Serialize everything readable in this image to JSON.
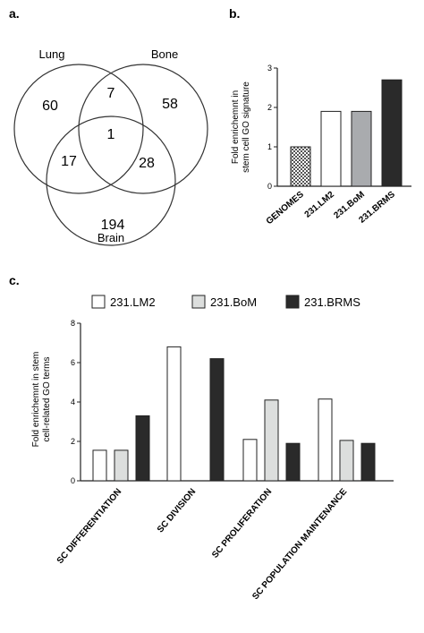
{
  "panels": {
    "a": "a.",
    "b": "b.",
    "c": "c."
  },
  "venn": {
    "sets": [
      {
        "label": "Lung",
        "only": "60"
      },
      {
        "label": "Bone",
        "only": "58"
      },
      {
        "label": "Brain",
        "only": "194"
      }
    ],
    "overlaps": {
      "lung_bone": "7",
      "lung_brain": "17",
      "bone_brain": "28",
      "all": "1"
    }
  },
  "chart_data": [
    {
      "type": "bar",
      "categories": [
        "GENOMES",
        "231.LM2",
        "231.BoM",
        "231.BRMS"
      ],
      "values": [
        1.0,
        1.9,
        1.9,
        2.7
      ],
      "ylabel": "Fold enrichemnt in stem cell GO signature",
      "ylim": [
        0,
        3
      ],
      "yticks": [
        "0",
        "1",
        "2",
        "3"
      ],
      "colors": [
        "#cccccc",
        "#ffffff",
        "#a9abae",
        "#2a2a2a"
      ]
    },
    {
      "type": "bar",
      "categories": [
        "SC DIFFERENTIATION",
        "SC DIVISION",
        "SC PROLIFERATION",
        "SC POPULATION MAINTENANCE"
      ],
      "series": [
        {
          "name": "231.LM2",
          "values": [
            1.55,
            6.8,
            2.1,
            4.15
          ],
          "color": "#ffffff"
        },
        {
          "name": "231.BoM",
          "values": [
            1.55,
            0,
            4.1,
            2.05
          ],
          "color": "#dcdedd"
        },
        {
          "name": "231.BRMS",
          "values": [
            3.3,
            6.2,
            1.9,
            1.9
          ],
          "color": "#2a2a2a"
        }
      ],
      "ylabel": "Fold enrichemnt in stem cell-related GO terms",
      "ylim": [
        0,
        8
      ],
      "yticks": [
        "0",
        "2",
        "4",
        "6",
        "8"
      ],
      "legend": "top"
    }
  ]
}
